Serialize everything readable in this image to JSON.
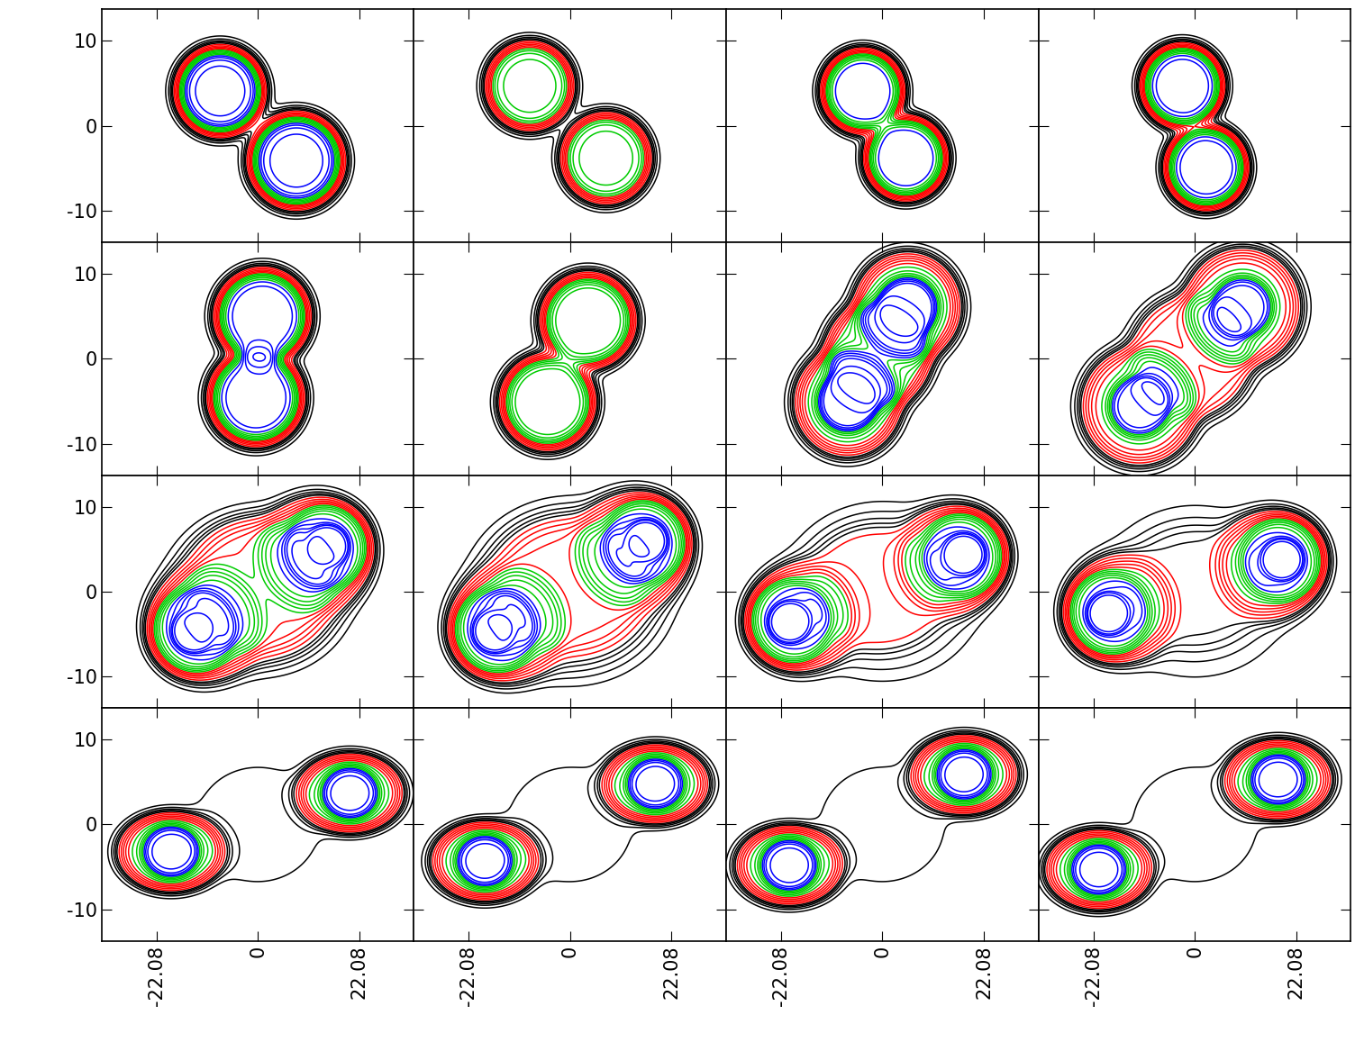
{
  "chart_data": {
    "type": "contour",
    "xlim": [
      -34,
      34
    ],
    "ylim": [
      -13.7,
      13.7
    ],
    "xticks": [
      -22.08,
      0,
      22.08
    ],
    "yticks": [
      -10,
      0,
      10
    ],
    "levels": [
      {
        "color": "#000000",
        "values": [
          0.03,
          0.06,
          0.09,
          0.12,
          0.15
        ]
      },
      {
        "color": "#ff0000",
        "values": [
          0.2,
          0.26,
          0.32,
          0.38,
          0.44
        ]
      },
      {
        "color": "#00cc00",
        "values": [
          0.5,
          0.56,
          0.62,
          0.68,
          0.74
        ]
      },
      {
        "color": "#0000ff",
        "values": [
          0.8,
          0.86,
          0.92,
          0.98,
          1.1,
          1.3
        ]
      }
    ],
    "panels": [
      {
        "components": [
          {
            "x": -8.2,
            "y": 4.1,
            "rx": 8.8,
            "ry": 4.8,
            "amp": 1.0
          },
          {
            "x": 8.4,
            "y": -4.1,
            "rx": 9.4,
            "ry": 5.1,
            "amp": 1.0
          }
        ]
      },
      {
        "components": [
          {
            "x": -8.8,
            "y": 4.7,
            "rx": 8.8,
            "ry": 4.8,
            "amp": 0.7
          },
          {
            "x": 7.8,
            "y": -3.8,
            "rx": 9.0,
            "ry": 4.9,
            "amp": 0.7
          }
        ]
      },
      {
        "components": [
          {
            "x": -4.3,
            "y": 4.1,
            "rx": 8.2,
            "ry": 4.5,
            "amp": 0.85
          },
          {
            "x": 5.1,
            "y": -3.8,
            "rx": 8.2,
            "ry": 4.5,
            "amp": 0.85
          }
        ]
      },
      {
        "components": [
          {
            "x": -2.7,
            "y": 4.7,
            "rx": 8.2,
            "ry": 4.5,
            "amp": 0.9
          },
          {
            "x": 2.5,
            "y": -4.9,
            "rx": 8.2,
            "ry": 4.5,
            "amp": 0.9
          }
        ]
      },
      {
        "components": [
          {
            "x": 1.0,
            "y": 5.0,
            "rx": 9.4,
            "ry": 5.1,
            "amp": 0.9
          },
          {
            "x": -0.4,
            "y": -4.6,
            "rx": 9.4,
            "ry": 5.1,
            "amp": 0.9
          }
        ]
      },
      {
        "components": [
          {
            "x": 3.9,
            "y": 4.5,
            "rx": 9.4,
            "ry": 5.1,
            "amp": 0.8
          },
          {
            "x": -4.9,
            "y": -5.1,
            "rx": 9.4,
            "ry": 5.1,
            "amp": 0.8
          }
        ]
      },
      {
        "components": [
          {
            "x": 5.5,
            "y": 6.1,
            "rx": 6.3,
            "ry": 3.4,
            "amp": 0.5
          },
          {
            "x": -7.6,
            "y": -5.1,
            "rx": 6.3,
            "ry": 3.4,
            "amp": 0.5
          },
          {
            "x": 5.5,
            "y": 6.1,
            "rx": 10.7,
            "ry": 5.9,
            "amp": 0.55
          },
          {
            "x": -7.6,
            "y": -5.1,
            "rx": 10.7,
            "ry": 5.9,
            "amp": 0.55
          },
          {
            "x": -1.0,
            "y": 0.5,
            "rx": 10.7,
            "ry": 5.9,
            "amp": 0.55
          }
        ]
      },
      {
        "components": [
          {
            "x": 10.4,
            "y": 6.1,
            "rx": 6.3,
            "ry": 3.4,
            "amp": 0.45
          },
          {
            "x": -12.1,
            "y": -5.6,
            "rx": 6.3,
            "ry": 3.4,
            "amp": 0.45
          },
          {
            "x": 10.4,
            "y": 6.1,
            "rx": 11.7,
            "ry": 6.4,
            "amp": 0.5
          },
          {
            "x": -12.1,
            "y": -5.6,
            "rx": 11.7,
            "ry": 6.4,
            "amp": 0.5
          },
          {
            "x": -0.8,
            "y": 0.3,
            "rx": 12.5,
            "ry": 6.8,
            "amp": 0.35
          }
        ]
      },
      {
        "components": [
          {
            "x": 15.2,
            "y": 5.4,
            "rx": 4.3,
            "ry": 2.3,
            "amp": 0.4
          },
          {
            "x": -14.1,
            "y": -4.7,
            "rx": 4.3,
            "ry": 2.3,
            "amp": 0.4
          },
          {
            "x": 15.2,
            "y": 5.4,
            "rx": 8.8,
            "ry": 4.8,
            "amp": 0.45
          },
          {
            "x": -14.1,
            "y": -4.7,
            "rx": 8.8,
            "ry": 4.8,
            "amp": 0.45
          },
          {
            "x": 12.5,
            "y": 4.5,
            "rx": 11.7,
            "ry": 6.4,
            "amp": 0.35
          },
          {
            "x": -11.5,
            "y": -3.8,
            "rx": 11.7,
            "ry": 6.4,
            "amp": 0.35
          },
          {
            "x": 0.5,
            "y": 0.5,
            "rx": 15.0,
            "ry": 7.5,
            "amp": 0.32
          },
          {
            "x": 0.0,
            "y": 0.0,
            "rx": 19.0,
            "ry": 9.0,
            "amp": 0.12
          }
        ]
      },
      {
        "components": [
          {
            "x": 16.6,
            "y": 6.0,
            "rx": 4.3,
            "ry": 2.3,
            "amp": 0.4
          },
          {
            "x": -16.6,
            "y": -4.7,
            "rx": 4.3,
            "ry": 2.3,
            "amp": 0.4
          },
          {
            "x": 16.6,
            "y": 6.0,
            "rx": 8.8,
            "ry": 4.8,
            "amp": 0.45
          },
          {
            "x": -16.6,
            "y": -4.7,
            "rx": 8.8,
            "ry": 4.8,
            "amp": 0.45
          },
          {
            "x": 13.8,
            "y": 5.0,
            "rx": 11.7,
            "ry": 6.4,
            "amp": 0.35
          },
          {
            "x": -13.8,
            "y": -3.9,
            "rx": 11.7,
            "ry": 6.4,
            "amp": 0.35
          },
          {
            "x": 0.0,
            "y": 0.5,
            "rx": 16.0,
            "ry": 7.5,
            "amp": 0.28
          },
          {
            "x": 0.0,
            "y": 0.0,
            "rx": 21.0,
            "ry": 10.0,
            "amp": 0.12
          }
        ]
      },
      {
        "components": [
          {
            "x": 17.8,
            "y": 4.4,
            "rx": 4.3,
            "ry": 2.3,
            "amp": 0.4
          },
          {
            "x": -20.3,
            "y": -3.6,
            "rx": 4.3,
            "ry": 2.3,
            "amp": 0.4
          },
          {
            "x": 17.8,
            "y": 4.4,
            "rx": 8.8,
            "ry": 4.8,
            "amp": 0.45
          },
          {
            "x": -20.3,
            "y": -3.6,
            "rx": 8.8,
            "ry": 4.8,
            "amp": 0.45
          },
          {
            "x": 15.0,
            "y": 3.8,
            "rx": 11.0,
            "ry": 6.0,
            "amp": 0.35
          },
          {
            "x": -17.5,
            "y": -3.0,
            "rx": 11.0,
            "ry": 6.0,
            "amp": 0.35
          },
          {
            "x": -1.0,
            "y": 0.4,
            "rx": 15.0,
            "ry": 7.0,
            "amp": 0.17
          },
          {
            "x": 0.0,
            "y": 0.0,
            "rx": 21.0,
            "ry": 10.0,
            "amp": 0.08
          }
        ]
      },
      {
        "components": [
          {
            "x": 19.1,
            "y": 3.8,
            "rx": 4.3,
            "ry": 2.3,
            "amp": 0.4
          },
          {
            "x": -18.9,
            "y": -2.6,
            "rx": 4.3,
            "ry": 2.3,
            "amp": 0.4
          },
          {
            "x": 19.1,
            "y": 3.8,
            "rx": 8.8,
            "ry": 4.8,
            "amp": 0.45
          },
          {
            "x": -18.9,
            "y": -2.6,
            "rx": 8.8,
            "ry": 4.8,
            "amp": 0.45
          },
          {
            "x": 16.5,
            "y": 3.2,
            "rx": 11.0,
            "ry": 6.0,
            "amp": 0.35
          },
          {
            "x": -16.3,
            "y": -2.0,
            "rx": 11.0,
            "ry": 6.0,
            "amp": 0.35
          },
          {
            "x": 0.0,
            "y": 0.4,
            "rx": 15.0,
            "ry": 7.0,
            "amp": 0.1
          },
          {
            "x": 0.0,
            "y": 0.0,
            "rx": 21.0,
            "ry": 10.0,
            "amp": 0.06
          }
        ]
      },
      {
        "components": [
          {
            "x": 20.1,
            "y": 3.7,
            "rx": 6.0,
            "ry": 3.0,
            "amp": 0.45
          },
          {
            "x": -18.9,
            "y": -3.2,
            "rx": 6.0,
            "ry": 3.0,
            "amp": 0.45
          },
          {
            "x": 20.1,
            "y": 3.7,
            "rx": 10.7,
            "ry": 4.3,
            "amp": 0.55
          },
          {
            "x": -18.9,
            "y": -3.2,
            "rx": 10.7,
            "ry": 4.3,
            "amp": 0.55
          },
          {
            "x": 0.0,
            "y": 0.0,
            "rx": 14.0,
            "ry": 7.0,
            "amp": 0.05
          }
        ]
      },
      {
        "components": [
          {
            "x": 18.6,
            "y": 4.8,
            "rx": 6.0,
            "ry": 3.0,
            "amp": 0.45
          },
          {
            "x": -18.6,
            "y": -4.3,
            "rx": 6.0,
            "ry": 3.0,
            "amp": 0.45
          },
          {
            "x": 18.6,
            "y": 4.8,
            "rx": 10.7,
            "ry": 4.3,
            "amp": 0.55
          },
          {
            "x": -18.6,
            "y": -4.3,
            "rx": 10.7,
            "ry": 4.3,
            "amp": 0.55
          },
          {
            "x": 0.0,
            "y": 0.0,
            "rx": 14.0,
            "ry": 7.0,
            "amp": 0.05
          }
        ]
      },
      {
        "components": [
          {
            "x": 17.8,
            "y": 5.9,
            "rx": 6.0,
            "ry": 3.0,
            "amp": 0.45
          },
          {
            "x": -20.3,
            "y": -4.8,
            "rx": 6.0,
            "ry": 3.0,
            "amp": 0.45
          },
          {
            "x": 17.8,
            "y": 5.9,
            "rx": 10.7,
            "ry": 4.3,
            "amp": 0.55
          },
          {
            "x": -20.3,
            "y": -4.8,
            "rx": 10.7,
            "ry": 4.3,
            "amp": 0.55
          },
          {
            "x": 0.0,
            "y": 0.0,
            "rx": 14.0,
            "ry": 7.0,
            "amp": 0.05
          }
        ]
      },
      {
        "components": [
          {
            "x": 18.2,
            "y": 5.3,
            "rx": 6.0,
            "ry": 3.0,
            "amp": 0.45
          },
          {
            "x": -20.9,
            "y": -5.3,
            "rx": 6.0,
            "ry": 3.0,
            "amp": 0.45
          },
          {
            "x": 18.2,
            "y": 5.3,
            "rx": 10.7,
            "ry": 4.3,
            "amp": 0.55
          },
          {
            "x": -20.9,
            "y": -5.3,
            "rx": 10.7,
            "ry": 4.3,
            "amp": 0.55
          },
          {
            "x": 0.0,
            "y": 0.0,
            "rx": 14.0,
            "ry": 7.0,
            "amp": 0.05
          }
        ]
      }
    ]
  }
}
